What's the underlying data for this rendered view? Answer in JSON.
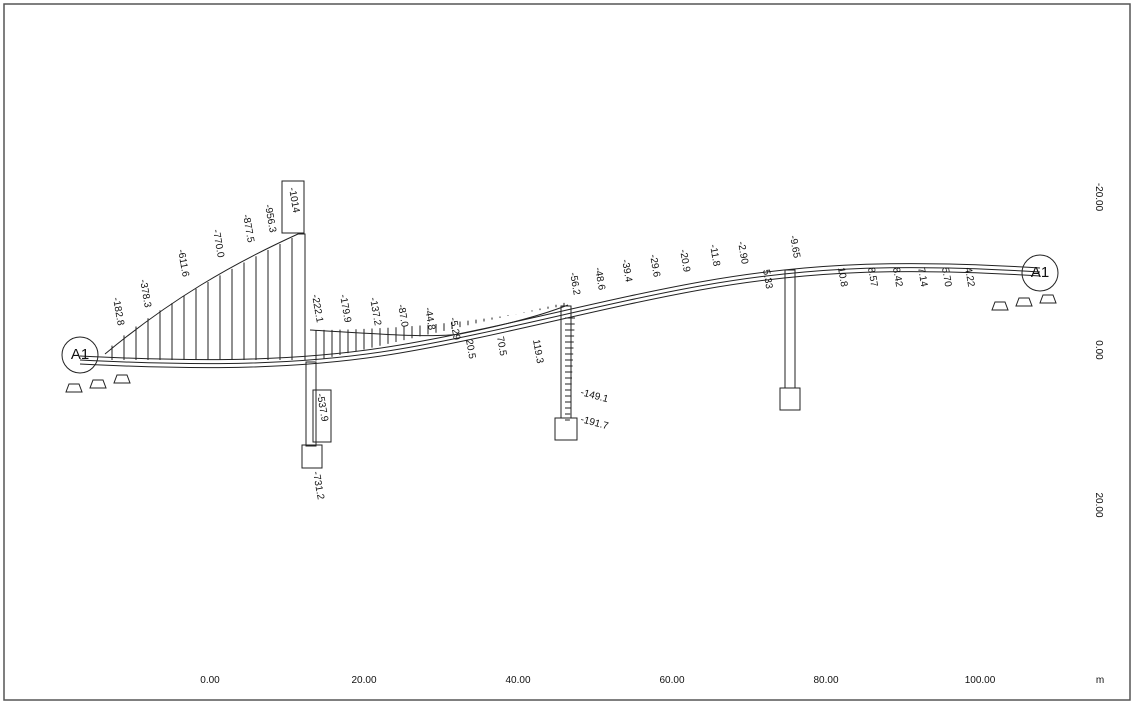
{
  "axes": {
    "x_ticks": [
      "0.00",
      "20.00",
      "40.00",
      "60.00",
      "80.00",
      "100.00"
    ],
    "x_unit": "m",
    "y_ticks": [
      "-20.00",
      "0.00",
      "20.00"
    ]
  },
  "supports": [
    "A1",
    "A1"
  ],
  "girder_labels": [
    "-182.8",
    "-378.3",
    "-611.6",
    "-770.0",
    "-877.5",
    "-956.3",
    "-1014",
    "-222.1",
    "-179.9",
    "-137.2",
    "-87.0",
    "-44.8",
    "-5.29",
    "20.5",
    "70.5",
    "119.3",
    "-56.2",
    "-48.6",
    "-39.4",
    "-29.6",
    "-20.9",
    "-11.8",
    "-2.90",
    "-9.65",
    "5.33",
    "10.8",
    "8.57",
    "8.42",
    "7.14",
    "5.70",
    "4.22"
  ],
  "pier_labels": [
    "-537.9",
    "-731.2",
    "-149.1",
    "-191.7"
  ]
}
